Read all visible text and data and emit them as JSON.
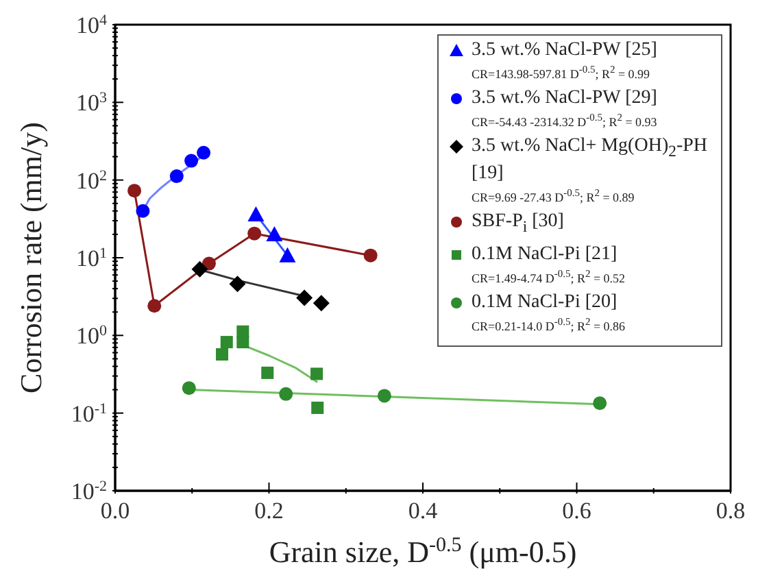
{
  "chart_data": {
    "type": "scatter",
    "xlabel": "Grain size, D$^{-0.5}$ (μm-0.5)",
    "ylabel": "Corrosion rate (mm/y)",
    "log": "y",
    "legend": "top right",
    "xlim": [
      0,
      0.8
    ],
    "xticks": [
      {
        "value": 0,
        "label": "0.0"
      },
      {
        "value": 0.1,
        "label": null
      },
      {
        "value": 0.2,
        "label": "0.2"
      },
      {
        "value": 0.3,
        "label": null
      },
      {
        "value": 0.4,
        "label": "0.4"
      },
      {
        "value": 0.5,
        "label": null
      },
      {
        "value": 0.6,
        "label": "0.6"
      },
      {
        "value": 0.7,
        "label": null
      },
      {
        "value": 0.8,
        "label": "0.8"
      }
    ],
    "ylim": [
      0.01,
      10000
    ],
    "yticks": [
      {
        "value": 0.01,
        "label": "10$^{-2}$"
      },
      {
        "value": 0.1,
        "label": "10$^{-1}$"
      },
      {
        "value": 1,
        "label": "10$^{0}$"
      },
      {
        "value": 10,
        "label": "10$^{1}$"
      },
      {
        "value": 100,
        "label": "10$^{2}$"
      },
      {
        "value": 1000,
        "label": "10$^{3}$"
      },
      {
        "value": 10000,
        "label": "10$^{4}$"
      },
      {
        "value": 0.02,
        "label": null
      },
      {
        "value": 0.03,
        "label": null
      },
      {
        "value": 0.04,
        "label": null
      },
      {
        "value": 0.05,
        "label": null
      },
      {
        "value": 0.06,
        "label": null
      },
      {
        "value": 0.07,
        "label": null
      },
      {
        "value": 0.08,
        "label": null
      },
      {
        "value": 0.09,
        "label": null
      },
      {
        "value": 0.2,
        "label": null
      },
      {
        "value": 0.3,
        "label": null
      },
      {
        "value": 0.4,
        "label": null
      },
      {
        "value": 0.5,
        "label": null
      },
      {
        "value": 0.6,
        "label": null
      },
      {
        "value": 0.7,
        "label": null
      },
      {
        "value": 0.8,
        "label": null
      },
      {
        "value": 0.9,
        "label": null
      },
      {
        "value": 2,
        "label": null
      },
      {
        "value": 3,
        "label": null
      },
      {
        "value": 4,
        "label": null
      },
      {
        "value": 5,
        "label": null
      },
      {
        "value": 6,
        "label": null
      },
      {
        "value": 7,
        "label": null
      },
      {
        "value": 8,
        "label": null
      },
      {
        "value": 9,
        "label": null
      },
      {
        "value": 20,
        "label": null
      },
      {
        "value": 30,
        "label": null
      },
      {
        "value": 40,
        "label": null
      },
      {
        "value": 50,
        "label": null
      },
      {
        "value": 60,
        "label": null
      },
      {
        "value": 70,
        "label": null
      },
      {
        "value": 80,
        "label": null
      },
      {
        "value": 90,
        "label": null
      },
      {
        "value": 200,
        "label": null
      },
      {
        "value": 300,
        "label": null
      },
      {
        "value": 400,
        "label": null
      },
      {
        "value": 500,
        "label": null
      },
      {
        "value": 600,
        "label": null
      },
      {
        "value": 700,
        "label": null
      },
      {
        "value": 800,
        "label": null
      },
      {
        "value": 900,
        "label": null
      },
      {
        "value": 2000,
        "label": null
      },
      {
        "value": 3000,
        "label": null
      },
      {
        "value": 4000,
        "label": null
      },
      {
        "value": 5000,
        "label": null
      },
      {
        "value": 6000,
        "label": null
      },
      {
        "value": 7000,
        "label": null
      },
      {
        "value": 8000,
        "label": null
      },
      {
        "value": 9000,
        "label": null
      }
    ],
    "series": [
      {
        "name": "3.5 wt.% NaCl-PW [25]\nCR=143.98-597.81 D$^{-0.5}$; R$^{2}$ = 0.99",
        "marker": "triangle",
        "color": "#0000ff",
        "x": [
          0.183,
          0.207,
          0.224
        ],
        "values": [
          36,
          20,
          10.7
        ]
      },
      {
        "name": "3.5 wt.% NaCl-PW [29]\nCR=-54.43 -2314.32 D$^{-0.5}$; R$^{2}$ = 0.93",
        "marker": "circle",
        "color": "#0000ff",
        "x": [
          0.036,
          0.08,
          0.099,
          0.115
        ],
        "values": [
          40,
          112,
          177,
          225
        ]
      },
      {
        "name": "3.5 wt.% NaCl+ Mg(OH)$_{2}$-PH [19]\nCR=9.69 -27.43 D$^{-0.5}$; R$^{2}$ = 0.89",
        "marker": "diamond",
        "color": "#000000",
        "x": [
          0.11,
          0.159,
          0.246,
          0.268
        ],
        "values": [
          7.1,
          4.6,
          3.05,
          2.6
        ]
      },
      {
        "name": "SBF-P$_{i}$ [30]",
        "type": "line",
        "marker": "circle",
        "color": "#8b1a1a",
        "x": [
          0.025,
          0.051,
          0.122,
          0.181,
          0.332
        ],
        "values": [
          73,
          2.4,
          8.4,
          20.5,
          10.7
        ]
      },
      {
        "name": "0.1M NaCl-Pi [21]\nCR=1.49-4.74 D$^{-0.5}$; R$^{2}$ = 0.52",
        "marker": "square",
        "color": "#2e8b2e",
        "x": [
          0.139,
          0.145,
          0.166,
          0.166,
          0.198,
          0.262,
          0.263
        ],
        "values": [
          0.57,
          0.82,
          1.12,
          0.82,
          0.33,
          0.32,
          0.117
        ]
      },
      {
        "name": "0.1M NaCl-Pi [20]\nCR=0.21-14.0 D$^{-0.5}$; R$^{2}$ = 0.86",
        "marker": "circle",
        "color": "#2e8b2e",
        "x": [
          0.096,
          0.222,
          0.35,
          0.63
        ],
        "values": [
          0.21,
          0.176,
          0.167,
          0.134
        ]
      },
      {
        "type": "line",
        "marker": "none",
        "color": "#3355ff",
        "x": [
          0.183,
          0.224
        ],
        "values": [
          36,
          10.7
        ]
      },
      {
        "type": "line",
        "marker": "none",
        "color": "#6f82ff",
        "x": [
          0.036,
          0.045,
          0.06,
          0.08,
          0.1,
          0.115
        ],
        "values": [
          40,
          58,
          80,
          115,
          160,
          210
        ]
      },
      {
        "type": "line",
        "marker": "none",
        "color": "#333333",
        "x": [
          0.11,
          0.16,
          0.246
        ],
        "values": [
          7,
          5.1,
          3.2
        ]
      },
      {
        "type": "line",
        "marker": "none",
        "color": "#6fbf5f",
        "x": [
          0.166,
          0.2,
          0.235,
          0.263
        ],
        "values": [
          0.75,
          0.55,
          0.38,
          0.25
        ]
      },
      {
        "type": "line",
        "marker": "none",
        "color": "#6fbf5f",
        "x": [
          0.096,
          0.63
        ],
        "values": [
          0.2,
          0.13
        ]
      }
    ]
  }
}
